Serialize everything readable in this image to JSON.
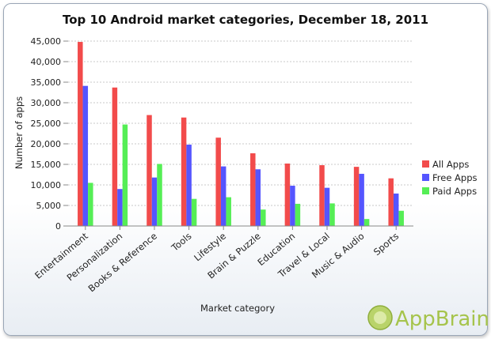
{
  "chart_data": {
    "type": "bar",
    "title": "Top 10 Android market categories, December 18, 2011",
    "xlabel": "Market category",
    "ylabel": "Number of apps",
    "ylim": [
      0,
      45000
    ],
    "yticks": [
      "0",
      "5,000",
      "10,000",
      "15,000",
      "20,000",
      "25,000",
      "30,000",
      "35,000",
      "40,000",
      "45,000"
    ],
    "grid": true,
    "legend_position": "right",
    "categories": [
      "Entertainment",
      "Personalization",
      "Books & Reference",
      "Tools",
      "Lifestyle",
      "Brain & Puzzle",
      "Education",
      "Travel & Local",
      "Music & Audio",
      "Sports"
    ],
    "series": [
      {
        "name": "All Apps",
        "color": "#f24b4b",
        "values": [
          44800,
          33700,
          27000,
          26400,
          21500,
          17700,
          15200,
          14800,
          14400,
          11600
        ]
      },
      {
        "name": "Free Apps",
        "color": "#5555ff",
        "values": [
          34100,
          9000,
          11800,
          19800,
          14500,
          13800,
          9800,
          9300,
          12700,
          7900
        ]
      },
      {
        "name": "Paid Apps",
        "color": "#55ee55",
        "values": [
          10500,
          24700,
          15100,
          6600,
          7000,
          4000,
          5400,
          5500,
          1700,
          3700
        ]
      }
    ]
  },
  "branding": {
    "logo_text": "AppBrain"
  }
}
